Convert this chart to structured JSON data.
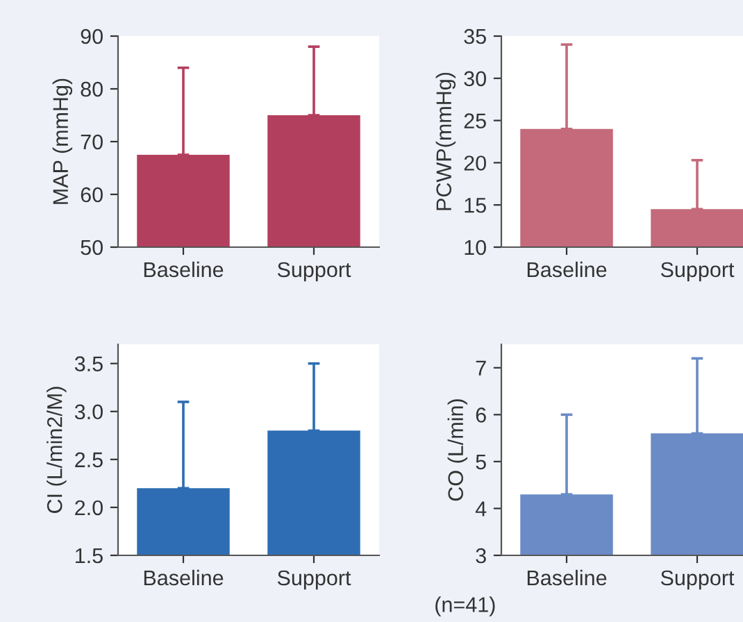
{
  "chart_data": [
    {
      "type": "bar",
      "ylabel": "MAP (mmHg)",
      "categories": [
        "Baseline",
        "Support"
      ],
      "values": [
        67.5,
        75
      ],
      "errors": [
        [
          67.5,
          84
        ],
        [
          75,
          88
        ]
      ],
      "color": "#b33f5e",
      "ylim": [
        50,
        90
      ],
      "yticks": [
        50,
        60,
        70,
        80,
        90
      ],
      "grid": false
    },
    {
      "type": "bar",
      "ylabel": "PCWP(mmHg)",
      "categories": [
        "Baseline",
        "Support"
      ],
      "values": [
        24,
        14.5
      ],
      "errors": [
        [
          24,
          34
        ],
        [
          14.5,
          20.3
        ]
      ],
      "color": "#c46a7a",
      "ylim": [
        10,
        35
      ],
      "yticks": [
        10,
        15,
        20,
        25,
        30,
        35
      ],
      "grid": false
    },
    {
      "type": "bar",
      "ylabel": "CI (L/min2/M)",
      "categories": [
        "Baseline",
        "Support"
      ],
      "values": [
        2.2,
        2.8
      ],
      "errors": [
        [
          2.2,
          3.1
        ],
        [
          2.8,
          3.5
        ]
      ],
      "color": "#2e6db4",
      "ylim": [
        1.5,
        3.7
      ],
      "yticks": [
        {
          "value": 1.5,
          "label": "1.5"
        },
        {
          "value": 2.0,
          "label": "2.0"
        },
        {
          "value": 2.5,
          "label": "2.5"
        },
        {
          "value": 3.0,
          "label": "3.0"
        },
        {
          "value": 3.5,
          "label": "3.5"
        }
      ],
      "grid": false
    },
    {
      "type": "bar",
      "ylabel": "CO (L/min)",
      "categories": [
        "Baseline",
        "Support"
      ],
      "values": [
        4.3,
        5.6
      ],
      "errors": [
        [
          4.3,
          6.0
        ],
        [
          5.6,
          7.2
        ]
      ],
      "color": "#6a8bc6",
      "ylim": [
        3,
        7.5
      ],
      "yticks": [
        3,
        4,
        5,
        6,
        7
      ],
      "grid": false,
      "annotations": [
        "(n=41)"
      ]
    }
  ]
}
